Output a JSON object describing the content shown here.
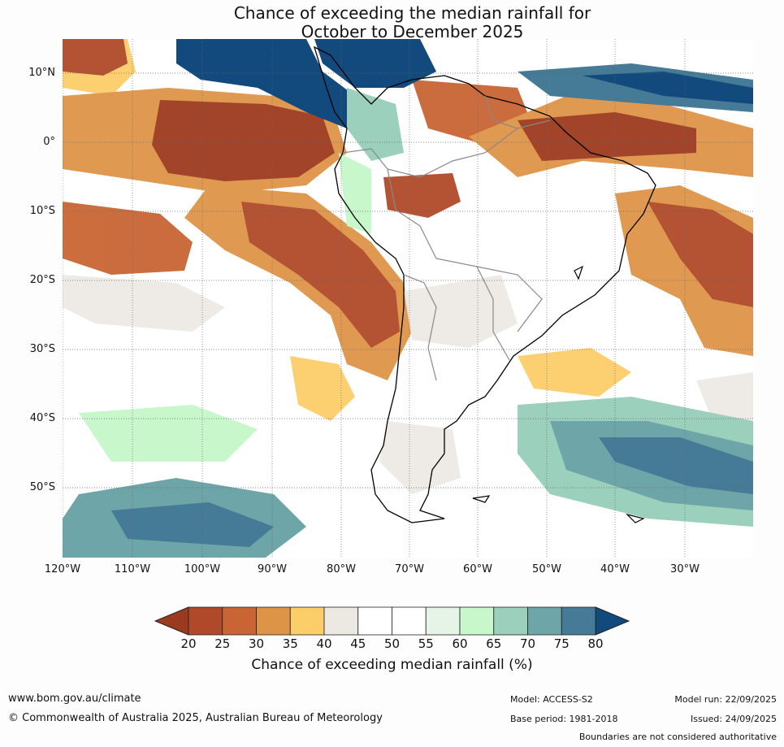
{
  "title": {
    "line1": "Chance of exceeding the median rainfall for",
    "line2": "October to December 2025"
  },
  "axes": {
    "lat_labels": [
      "10°N",
      "0°",
      "10°S",
      "20°S",
      "30°S",
      "40°S",
      "50°S"
    ],
    "lon_labels": [
      "120°W",
      "110°W",
      "100°W",
      "90°W",
      "80°W",
      "70°W",
      "60°W",
      "50°W",
      "40°W",
      "30°W"
    ]
  },
  "legend": {
    "title": "Chance of exceeding median rainfall (%)",
    "ticks": [
      "20",
      "25",
      "30",
      "35",
      "40",
      "45",
      "50",
      "55",
      "60",
      "65",
      "70",
      "75",
      "80"
    ],
    "colors": [
      "#9c3a1f",
      "#b0492a",
      "#c96534",
      "#de9447",
      "#fcce6a",
      "#ece9e3",
      "#ffffff",
      "#ffffff",
      "#e5f4e7",
      "#c7f7cb",
      "#9bd0bd",
      "#6ea5a8",
      "#457b96",
      "#124a7d"
    ]
  },
  "footer": {
    "website": "www.bom.gov.au/climate",
    "copyright": "© Commonwealth of Australia 2025, Australian Bureau of Meteorology",
    "model": "Model: ACCESS-S2",
    "base_period": "Base period: 1981-2018",
    "model_run": "Model run: 22/09/2025",
    "issued": "Issued: 24/09/2025",
    "disclaimer": "Boundaries are not considered authoritative"
  },
  "map_colors": {
    "ocean": "#ffffff",
    "very_dry": "#9c3a1f",
    "dry": "#c96534",
    "mod_dry": "#de9447",
    "slight_dry": "#fcce6a",
    "neutral": "#ece9e3",
    "slight_wet": "#c7f7cb",
    "mod_wet": "#9bd0bd",
    "wet": "#6ea5a8",
    "very_wet": "#124a7d"
  }
}
